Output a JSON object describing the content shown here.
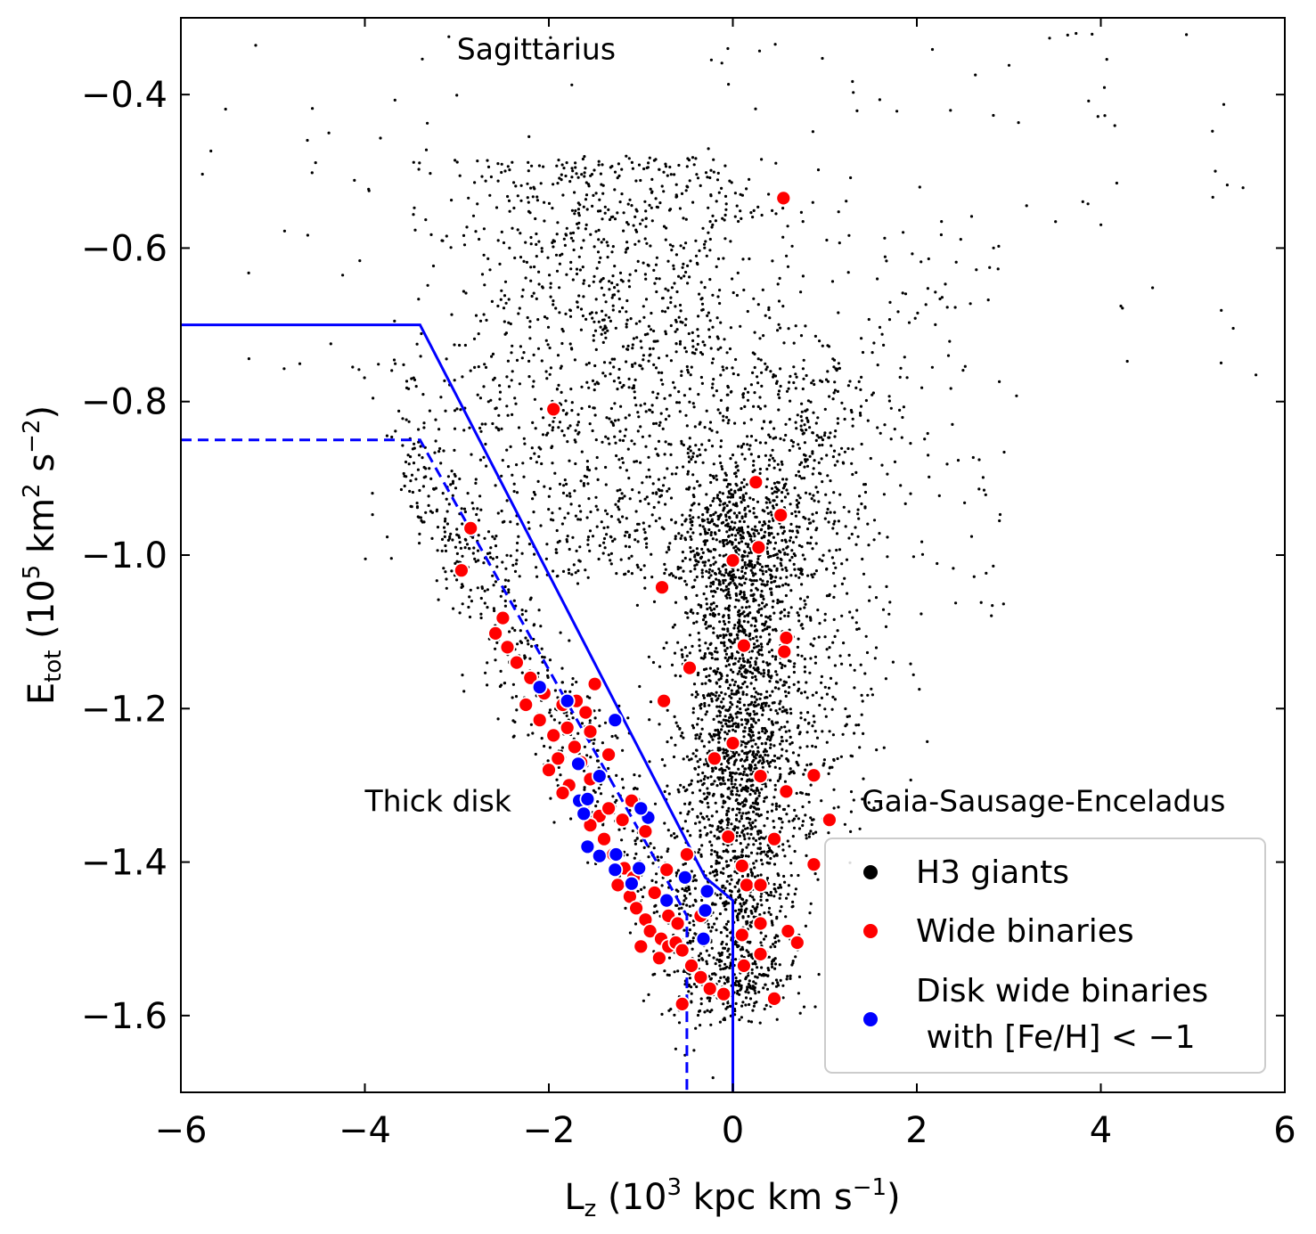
{
  "chart_data": {
    "type": "scatter",
    "xlabel": "L_z (10^3 kpc km s^-1)",
    "ylabel": "E_tot (10^5 km^2 s^-2)",
    "xlabel_parts": {
      "main": "L",
      "sub": "z",
      "open": " (10",
      "sup": "3",
      "rest": " kpc km s",
      "sup2": "−1",
      "close": ")"
    },
    "ylabel_parts": {
      "main": "E",
      "sub": "tot",
      "open": " (10",
      "sup": "5",
      "rest": " km",
      "sup2": "2",
      "rest2": " s",
      "sup3": "−2",
      "close": ")"
    },
    "xlim": [
      -6,
      6
    ],
    "ylim": [
      -1.7,
      -0.3
    ],
    "xticks": [
      -6,
      -4,
      -2,
      0,
      2,
      4,
      6
    ],
    "yticks": [
      -1.6,
      -1.4,
      -1.2,
      -1.0,
      -0.8,
      -0.6,
      -0.4
    ],
    "xtick_labels": [
      "−6",
      "−4",
      "−2",
      "0",
      "2",
      "4",
      "6"
    ],
    "ytick_labels": [
      "−1.6",
      "−1.4",
      "−1.2",
      "−1.0",
      "−0.8",
      "−0.6",
      "−0.4"
    ],
    "annotations": [
      {
        "text": "Sagittarius",
        "x": -3.0,
        "y": -0.34
      },
      {
        "text": "Thick disk",
        "x": -4.0,
        "y": -1.32
      },
      {
        "text": "Gaia-Sausage-Enceladus",
        "x": 1.4,
        "y": -1.32
      }
    ],
    "legend": {
      "placement": "lower-right",
      "entries": [
        {
          "label": "H3 giants",
          "color": "#000000"
        },
        {
          "label": "Wide binaries",
          "color": "#ff0000"
        },
        {
          "label": "Disk wide binaries",
          "label2": " with [Fe/H] < −1",
          "color": "#0000ff"
        }
      ]
    },
    "boundaries": [
      {
        "name": "solid-boundary",
        "style": "solid",
        "color": "#0000ff",
        "x": [
          -6,
          -3.4,
          -0.3,
          0,
          0
        ],
        "y": [
          -0.7,
          -0.7,
          -1.42,
          -1.45,
          -1.7
        ]
      },
      {
        "name": "dashed-boundary",
        "style": "dashed",
        "color": "#0000ff",
        "x": [
          -6,
          -3.4,
          -0.5,
          -0.5
        ],
        "y": [
          -0.85,
          -0.85,
          -1.47,
          -1.7
        ]
      }
    ],
    "series": [
      {
        "name": "Wide binaries",
        "color": "#ff0000",
        "points": [
          [
            0.55,
            -0.535
          ],
          [
            -1.95,
            -0.81
          ],
          [
            0.25,
            -0.905
          ],
          [
            0.52,
            -0.948
          ],
          [
            -2.85,
            -0.965
          ],
          [
            0.28,
            -0.99
          ],
          [
            -2.95,
            -1.02
          ],
          [
            0.0,
            -1.007
          ],
          [
            -0.77,
            -1.042
          ],
          [
            -2.5,
            -1.082
          ],
          [
            -2.58,
            -1.102
          ],
          [
            -2.45,
            -1.12
          ],
          [
            0.58,
            -1.108
          ],
          [
            0.56,
            -1.126
          ],
          [
            0.12,
            -1.118
          ],
          [
            -0.47,
            -1.147
          ],
          [
            -2.35,
            -1.14
          ],
          [
            -1.5,
            -1.168
          ],
          [
            -2.2,
            -1.16
          ],
          [
            -2.05,
            -1.18
          ],
          [
            -1.85,
            -1.195
          ],
          [
            -0.75,
            -1.19
          ],
          [
            -1.6,
            -1.205
          ],
          [
            -2.25,
            -1.195
          ],
          [
            -2.1,
            -1.215
          ],
          [
            -1.95,
            -1.235
          ],
          [
            -1.8,
            -1.225
          ],
          [
            -1.72,
            -1.25
          ],
          [
            -1.9,
            -1.265
          ],
          [
            -2.0,
            -1.28
          ],
          [
            -1.78,
            -1.3
          ],
          [
            -1.65,
            -1.27
          ],
          [
            -1.55,
            -1.292
          ],
          [
            -1.85,
            -1.31
          ],
          [
            -1.6,
            -1.322
          ],
          [
            -1.45,
            -1.34
          ],
          [
            -1.55,
            -1.352
          ],
          [
            -1.35,
            -1.33
          ],
          [
            -1.2,
            -1.345
          ],
          [
            -1.4,
            -1.37
          ],
          [
            -1.3,
            -1.39
          ],
          [
            -1.18,
            -1.408
          ],
          [
            -1.08,
            -1.42
          ],
          [
            -1.25,
            -1.43
          ],
          [
            -1.12,
            -1.445
          ],
          [
            -1.05,
            -1.46
          ],
          [
            -0.95,
            -1.475
          ],
          [
            -0.9,
            -1.49
          ],
          [
            -0.78,
            -1.5
          ],
          [
            -0.7,
            -1.51
          ],
          [
            -0.62,
            -1.505
          ],
          [
            -0.55,
            -1.515
          ],
          [
            -0.45,
            -1.535
          ],
          [
            -0.35,
            -1.55
          ],
          [
            -0.25,
            -1.565
          ],
          [
            -0.1,
            -1.572
          ],
          [
            -0.55,
            -1.585
          ],
          [
            0.45,
            -1.578
          ],
          [
            0.7,
            -1.505
          ],
          [
            0.6,
            -1.49
          ],
          [
            0.3,
            -1.48
          ],
          [
            0.1,
            -1.495
          ],
          [
            0.15,
            -1.43
          ],
          [
            0.3,
            -1.43
          ],
          [
            0.1,
            -1.405
          ],
          [
            -0.05,
            -1.367
          ],
          [
            0.45,
            -1.37
          ],
          [
            0.88,
            -1.403
          ],
          [
            1.05,
            -1.345
          ],
          [
            0.58,
            -1.308
          ],
          [
            0.3,
            -1.288
          ],
          [
            -0.2,
            -1.265
          ],
          [
            0.0,
            -1.245
          ],
          [
            0.88,
            -1.287
          ],
          [
            -0.5,
            -1.39
          ],
          [
            -0.72,
            -1.41
          ],
          [
            -0.95,
            -1.36
          ],
          [
            -1.1,
            -1.32
          ],
          [
            -1.35,
            -1.26
          ],
          [
            -1.55,
            -1.23
          ],
          [
            -1.7,
            -1.19
          ],
          [
            -0.85,
            -1.44
          ],
          [
            -0.7,
            -1.47
          ],
          [
            -1.0,
            -1.51
          ],
          [
            -0.8,
            -1.525
          ],
          [
            -0.6,
            -1.48
          ],
          [
            0.3,
            -1.52
          ],
          [
            0.12,
            -1.535
          ],
          [
            -0.35,
            -1.47
          ]
        ]
      },
      {
        "name": "Disk wide binaries with [Fe/H] < -1",
        "color": "#0000ff",
        "points": [
          [
            -2.1,
            -1.172
          ],
          [
            -1.8,
            -1.19
          ],
          [
            -1.28,
            -1.215
          ],
          [
            -1.68,
            -1.272
          ],
          [
            -1.67,
            -1.32
          ],
          [
            -1.58,
            -1.318
          ],
          [
            -1.62,
            -1.337
          ],
          [
            -1.45,
            -1.288
          ],
          [
            -1.58,
            -1.38
          ],
          [
            -1.45,
            -1.392
          ],
          [
            -1.27,
            -1.39
          ],
          [
            -1.28,
            -1.41
          ],
          [
            -1.1,
            -1.428
          ],
          [
            -0.92,
            -1.342
          ],
          [
            -1.0,
            -1.33
          ],
          [
            -0.72,
            -1.45
          ],
          [
            -0.52,
            -1.42
          ],
          [
            -0.28,
            -1.438
          ],
          [
            -0.3,
            -1.463
          ],
          [
            -0.32,
            -1.5
          ],
          [
            -1.02,
            -1.408
          ]
        ]
      }
    ]
  }
}
